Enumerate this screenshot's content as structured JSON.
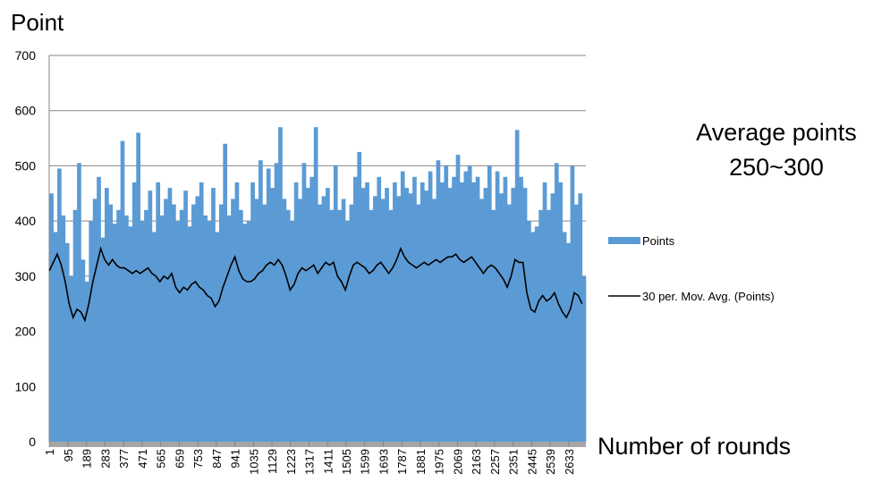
{
  "chart_data": {
    "type": "bar",
    "y_label": "Point",
    "x_label": "Number of rounds",
    "annotation": [
      "Average points",
      "250~300"
    ],
    "x": [
      1,
      21,
      41,
      61,
      81,
      101,
      121,
      141,
      161,
      181,
      201,
      221,
      241,
      261,
      281,
      301,
      321,
      341,
      361,
      381,
      401,
      421,
      441,
      461,
      481,
      501,
      521,
      541,
      561,
      581,
      601,
      621,
      641,
      661,
      681,
      701,
      721,
      741,
      761,
      781,
      801,
      821,
      841,
      861,
      881,
      901,
      921,
      941,
      961,
      981,
      1001,
      1021,
      1041,
      1061,
      1081,
      1101,
      1121,
      1141,
      1161,
      1181,
      1201,
      1221,
      1241,
      1261,
      1281,
      1301,
      1321,
      1341,
      1361,
      1381,
      1401,
      1421,
      1441,
      1461,
      1481,
      1501,
      1521,
      1541,
      1561,
      1581,
      1601,
      1621,
      1641,
      1661,
      1681,
      1701,
      1721,
      1741,
      1761,
      1781,
      1801,
      1821,
      1841,
      1861,
      1881,
      1901,
      1921,
      1941,
      1961,
      1981,
      2001,
      2021,
      2041,
      2061,
      2081,
      2101,
      2121,
      2141,
      2161,
      2181,
      2201,
      2221,
      2241,
      2261,
      2281,
      2301,
      2321,
      2341,
      2361,
      2381,
      2401,
      2421,
      2441,
      2461,
      2481,
      2501,
      2521,
      2541,
      2561,
      2581,
      2601,
      2621,
      2641,
      2661,
      2681,
      2701
    ],
    "series": [
      {
        "name": "Points",
        "type": "bar",
        "color": "#5b9bd5",
        "values": [
          450,
          380,
          495,
          410,
          360,
          300,
          420,
          505,
          330,
          290,
          400,
          440,
          480,
          370,
          460,
          430,
          395,
          420,
          545,
          410,
          390,
          470,
          560,
          400,
          420,
          455,
          380,
          470,
          410,
          440,
          460,
          430,
          400,
          420,
          455,
          390,
          430,
          445,
          470,
          410,
          400,
          460,
          380,
          430,
          540,
          410,
          440,
          470,
          420,
          395,
          400,
          470,
          440,
          510,
          430,
          495,
          460,
          505,
          570,
          440,
          420,
          400,
          470,
          440,
          505,
          460,
          480,
          570,
          430,
          445,
          460,
          420,
          500,
          420,
          440,
          400,
          430,
          480,
          525,
          460,
          470,
          420,
          445,
          480,
          440,
          460,
          420,
          470,
          445,
          490,
          460,
          450,
          480,
          430,
          470,
          455,
          490,
          440,
          510,
          470,
          500,
          460,
          480,
          520,
          470,
          490,
          500,
          470,
          480,
          440,
          460,
          500,
          420,
          490,
          450,
          480,
          430,
          460,
          565,
          480,
          460,
          400,
          380,
          390,
          420,
          470,
          420,
          450,
          505,
          470,
          380,
          360,
          500,
          430,
          450,
          300
        ]
      },
      {
        "name": "30 per. Mov. Avg. (Points)",
        "type": "line",
        "color": "#000000",
        "values": [
          310,
          325,
          340,
          320,
          290,
          250,
          225,
          240,
          235,
          220,
          250,
          290,
          320,
          350,
          330,
          320,
          330,
          320,
          315,
          315,
          310,
          305,
          310,
          305,
          310,
          315,
          305,
          300,
          290,
          300,
          295,
          305,
          280,
          270,
          280,
          275,
          285,
          290,
          280,
          275,
          265,
          260,
          245,
          255,
          280,
          300,
          320,
          335,
          310,
          295,
          290,
          290,
          295,
          305,
          310,
          320,
          325,
          320,
          330,
          320,
          300,
          275,
          285,
          305,
          315,
          310,
          315,
          320,
          305,
          315,
          325,
          320,
          325,
          300,
          290,
          275,
          300,
          320,
          325,
          320,
          315,
          305,
          310,
          320,
          325,
          315,
          305,
          315,
          330,
          350,
          335,
          325,
          320,
          315,
          320,
          325,
          320,
          325,
          330,
          325,
          330,
          335,
          335,
          340,
          330,
          325,
          330,
          335,
          325,
          315,
          305,
          315,
          320,
          315,
          305,
          295,
          280,
          300,
          330,
          325,
          325,
          270,
          240,
          235,
          255,
          265,
          255,
          260,
          270,
          250,
          235,
          225,
          240,
          270,
          265,
          250
        ]
      }
    ],
    "xlim": [
      0,
      2720
    ],
    "xticks": [
      1,
      95,
      189,
      283,
      377,
      471,
      565,
      659,
      753,
      847,
      941,
      1035,
      1129,
      1223,
      1317,
      1411,
      1505,
      1599,
      1693,
      1787,
      1881,
      1975,
      2069,
      2163,
      2257,
      2351,
      2445,
      2539,
      2633
    ],
    "ylim": [
      0,
      700
    ],
    "yticks": [
      0,
      100,
      200,
      300,
      400,
      500,
      600,
      700
    ],
    "grid": true,
    "legend": "right"
  }
}
